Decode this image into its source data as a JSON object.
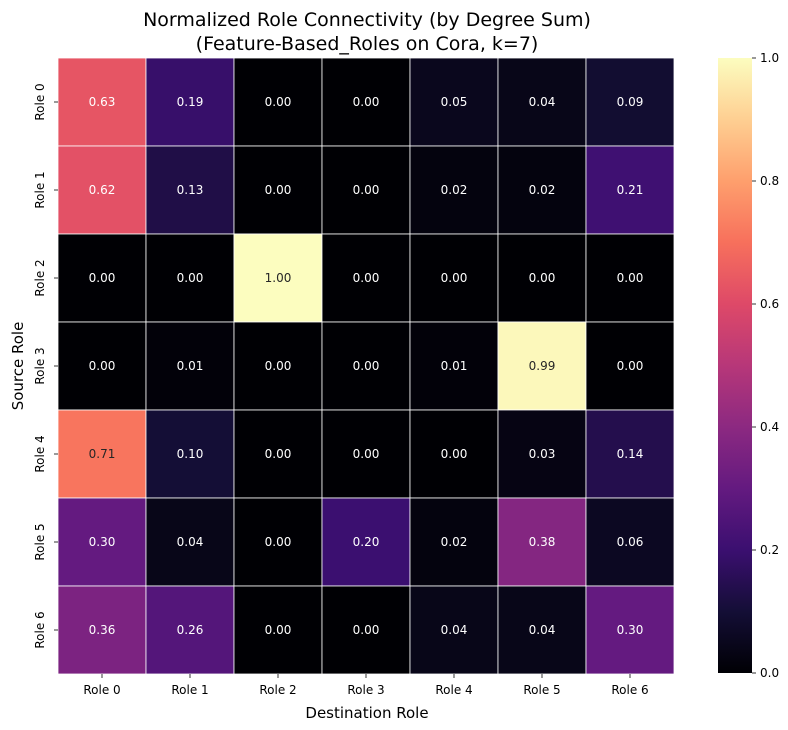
{
  "chart_data": {
    "type": "heatmap",
    "title_line1": "Normalized Role Connectivity (by Degree Sum)",
    "title_line2": "(Feature-Based_Roles on Cora, k=7)",
    "xlabel": "Destination Role",
    "ylabel": "Source Role",
    "x_categories": [
      "Role 0",
      "Role 1",
      "Role 2",
      "Role 3",
      "Role 4",
      "Role 5",
      "Role 6"
    ],
    "y_categories": [
      "Role 0",
      "Role 1",
      "Role 2",
      "Role 3",
      "Role 4",
      "Role 5",
      "Role 6"
    ],
    "values": [
      [
        0.63,
        0.19,
        0.0,
        0.0,
        0.05,
        0.04,
        0.09
      ],
      [
        0.62,
        0.13,
        0.0,
        0.0,
        0.02,
        0.02,
        0.21
      ],
      [
        0.0,
        0.0,
        1.0,
        0.0,
        0.0,
        0.0,
        0.0
      ],
      [
        0.0,
        0.01,
        0.0,
        0.0,
        0.01,
        0.99,
        0.0
      ],
      [
        0.71,
        0.1,
        0.0,
        0.0,
        0.0,
        0.03,
        0.14
      ],
      [
        0.3,
        0.04,
        0.0,
        0.2,
        0.02,
        0.38,
        0.06
      ],
      [
        0.36,
        0.26,
        0.0,
        0.0,
        0.04,
        0.04,
        0.3
      ]
    ],
    "colormap": "magma",
    "vmin": 0.0,
    "vmax": 1.0,
    "colorbar_ticks": [
      "0.0",
      "0.2",
      "0.4",
      "0.6",
      "0.8",
      "1.0"
    ],
    "annotated": true,
    "grid_line_color": "#ffffff"
  }
}
